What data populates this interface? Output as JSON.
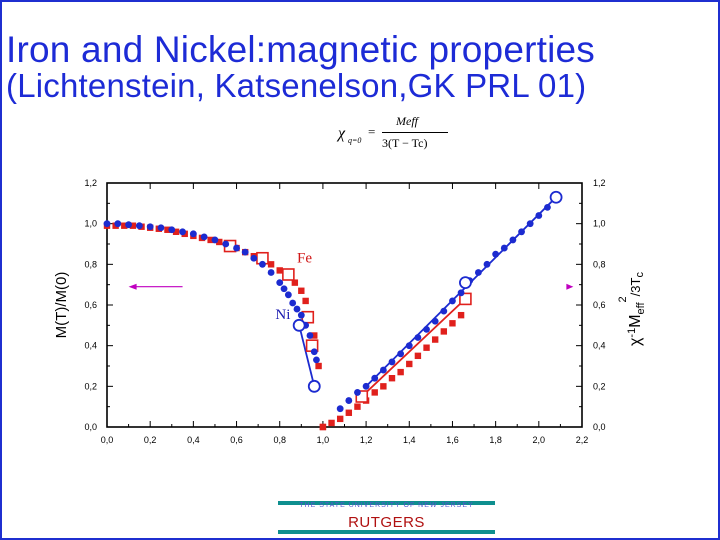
{
  "slide": {
    "title_line1": "Iron and Nickel:magnetic properties",
    "title_line2": "(Lichtenstein, Katsenelson,GK PRL 01)",
    "frame_color": "#1f2fd0",
    "title_color": "#1d2bd6"
  },
  "formula": {
    "chi": "χ",
    "subscript": "q=0",
    "equals": "=",
    "numerator": "Meff",
    "denominator": "3(T − Tc)"
  },
  "footer": {
    "small_text": "THE STATE UNIVERSITY OF NEW JERSEY",
    "big_text": "RUTGERS"
  },
  "chart_data": {
    "type": "scatter",
    "xlim": [
      0.0,
      2.2
    ],
    "ylim": [
      0.0,
      1.2
    ],
    "x_ticks": [
      "0,0",
      "0,2",
      "0,4",
      "0,6",
      "0,8",
      "1,0",
      "1,2",
      "1,4",
      "1,6",
      "1,8",
      "2,0",
      "2,2"
    ],
    "y_ticks_left": [
      "0,0",
      "0,2",
      "0,4",
      "0,6",
      "0,8",
      "1,0",
      "1,2"
    ],
    "y_ticks_right": [
      "0,0",
      "0,2",
      "0,4",
      "0,6",
      "0,8",
      "1,0",
      "1,2"
    ],
    "ylabel_left": "M(T)/M(0)",
    "ylabel_right": "χ⁻¹M_eff²/3T_c",
    "ylabel_right_parts": {
      "chi": "χ",
      "minus_one": "-1",
      "m": "M",
      "eff": "eff",
      "two": "2",
      "rest": "/3T",
      "c": "c"
    },
    "labels": [
      {
        "text": "Fe",
        "x": 0.88,
        "y": 0.81,
        "color": "#d01818"
      },
      {
        "text": "Ni",
        "x": 0.78,
        "y": 0.53,
        "color": "#1a1ab0"
      }
    ],
    "colors": {
      "fe": "#e0201c",
      "ni": "#1c2bd0",
      "axis": "#000000",
      "arrow": "#c000c0"
    },
    "series": [
      {
        "marker": "filled-square",
        "color": "#e0201c",
        "x": [
          0.0,
          0.04,
          0.08,
          0.12,
          0.16,
          0.2,
          0.24,
          0.28,
          0.32,
          0.36,
          0.4,
          0.44,
          0.48,
          0.52,
          0.56,
          0.6,
          0.64,
          0.68,
          0.72,
          0.76,
          0.8,
          0.84,
          0.87,
          0.9,
          0.92,
          0.94,
          0.96,
          0.98,
          1.0
        ],
        "y": [
          0.99,
          0.99,
          0.99,
          0.99,
          0.985,
          0.98,
          0.975,
          0.97,
          0.96,
          0.95,
          0.94,
          0.93,
          0.92,
          0.91,
          0.895,
          0.88,
          0.86,
          0.84,
          0.82,
          0.8,
          0.77,
          0.74,
          0.71,
          0.67,
          0.62,
          0.55,
          0.45,
          0.3,
          0.0
        ]
      },
      {
        "marker": "filled-square",
        "color": "#e0201c",
        "x": [
          1.0,
          1.04,
          1.08,
          1.12,
          1.16,
          1.2,
          1.24,
          1.28,
          1.32,
          1.36,
          1.4,
          1.44,
          1.48,
          1.52,
          1.56,
          1.6,
          1.64
        ],
        "y": [
          0.0,
          0.02,
          0.04,
          0.07,
          0.1,
          0.13,
          0.17,
          0.2,
          0.24,
          0.27,
          0.31,
          0.35,
          0.39,
          0.43,
          0.47,
          0.51,
          0.55
        ]
      },
      {
        "marker": "open-square",
        "color": "#e0201c",
        "x": [
          0.57,
          0.72,
          0.84,
          0.93,
          0.95,
          1.18,
          1.66
        ],
        "y": [
          0.89,
          0.83,
          0.75,
          0.54,
          0.4,
          0.15,
          0.63
        ]
      },
      {
        "marker": "filled-circle",
        "color": "#1c2bd0",
        "x": [
          0.0,
          0.05,
          0.1,
          0.15,
          0.2,
          0.25,
          0.3,
          0.35,
          0.4,
          0.45,
          0.5,
          0.55,
          0.6,
          0.64,
          0.68,
          0.72,
          0.76,
          0.8,
          0.82,
          0.84,
          0.86,
          0.88,
          0.9,
          0.92,
          0.94,
          0.96,
          0.97
        ],
        "y": [
          1.0,
          1.0,
          0.995,
          0.99,
          0.985,
          0.98,
          0.97,
          0.96,
          0.95,
          0.935,
          0.92,
          0.9,
          0.88,
          0.86,
          0.83,
          0.8,
          0.76,
          0.71,
          0.68,
          0.65,
          0.61,
          0.58,
          0.55,
          0.5,
          0.45,
          0.37,
          0.33
        ]
      },
      {
        "marker": "filled-circle",
        "color": "#1c2bd0",
        "x": [
          1.08,
          1.12,
          1.16,
          1.2,
          1.24,
          1.28,
          1.32,
          1.36,
          1.4,
          1.44,
          1.48,
          1.52,
          1.56,
          1.6,
          1.64,
          1.68,
          1.72,
          1.76,
          1.8,
          1.84,
          1.88,
          1.92,
          1.96,
          2.0,
          2.04,
          2.08
        ],
        "y": [
          0.09,
          0.13,
          0.17,
          0.2,
          0.24,
          0.28,
          0.32,
          0.36,
          0.4,
          0.44,
          0.48,
          0.52,
          0.57,
          0.62,
          0.66,
          0.72,
          0.76,
          0.8,
          0.85,
          0.88,
          0.92,
          0.96,
          1.0,
          1.04,
          1.08,
          1.12
        ]
      },
      {
        "marker": "open-circle",
        "color": "#1c2bd0",
        "x": [
          0.89,
          0.96,
          1.66,
          2.08
        ],
        "y": [
          0.5,
          0.2,
          0.71,
          1.13
        ]
      }
    ],
    "lines": [
      {
        "color": "#1c2bd0",
        "x": [
          0.89,
          0.96
        ],
        "y": [
          0.5,
          0.2
        ]
      },
      {
        "color": "#1c2bd0",
        "x": [
          1.2,
          2.08
        ],
        "y": [
          0.2,
          1.13
        ]
      },
      {
        "color": "#e0201c",
        "x": [
          1.18,
          1.66
        ],
        "y": [
          0.15,
          0.63
        ]
      }
    ],
    "arrows": [
      {
        "direction": "left",
        "x_from": 0.35,
        "x_to": 0.1,
        "y": 0.69
      },
      {
        "direction": "right",
        "x_from": 2.12,
        "x_to": 2.16,
        "y": 0.69
      }
    ]
  }
}
